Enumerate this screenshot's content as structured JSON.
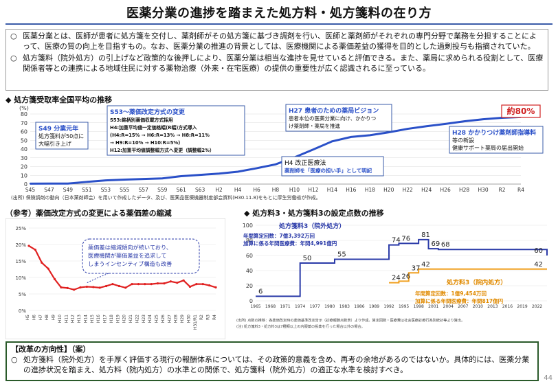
{
  "title": "医薬分業の進捗を踏まえた処方料・処方箋料の在り方",
  "intro": {
    "bullets": [
      "医薬分業とは、医師が患者に処方箋を交付し、薬剤師がその処方箋に基づき調剤を行い、医師と薬剤師がそれぞれの専門分野で業務を分担することによって、医療の質の向上を目指すもの。なお、医薬分業の推進の背景としては、医療機関による薬価差益の獲得を目的とした過剰投与も指摘されていた。",
      "処方箋料（院外処方）の引上げなど政策的な後押しにより、医薬分業は相当な進捗を見せていると評価できる。また、薬局に求められる役割として、医療関係者等との連携による地域住民に対する薬物治療（外来・在宅医療）の提供の重要性が広く認識されるに至っている。"
    ],
    "marker": "○"
  },
  "section1": {
    "heading": "◆ 処方箋受取率全国平均の推移",
    "source": "(出所) 保険調剤の動向（日本薬剤師会）を用いて作成したデータ、及び、医薬品医療機器制度部会資料(H30.11.8)をもとに厚生労働省が作成。",
    "badge": "約80%",
    "ann_s49_title": "S49 分業元年",
    "ann_s49_text": [
      "処方箋料が50点に",
      "大幅引き上げ"
    ],
    "ann_s53_title": "S53～薬価改定方式の変更",
    "ann_s53_lines": [
      "S53:銘柄別薬価収載方式採用",
      "H4:加重平均値一定価格幅(R幅)方式導入",
      "(H4:R=15% → H6:R=13% → H8:R=11%",
      "→ H9:R=10% → H10:R=5%)",
      "H12:加重平均値調整幅方式へ変更（調整幅2%）"
    ],
    "ann_h4_title": "H4 改正医療法",
    "ann_h4_text": "薬剤師を「医療の担い手」として明記",
    "ann_h27_title": "H27 患者のための薬局ビジョン",
    "ann_h27_text": [
      "患者本位の医薬分業に向け、かかりつ",
      "け薬剤師・薬局を推進"
    ],
    "ann_h28_title": "H28 かかりつけ薬剤師指導料",
    "ann_h28_text": [
      "等の新設",
      "健康サポート薬局の届出開始"
    ]
  },
  "section2": {
    "heading": "（参考）薬価改定方式の変更による薬価差の縮減",
    "note": [
      "薬価差は縮減傾向が続いており、",
      "医療機関が薬価差益を追求して",
      "しまうインセンティブ構造も改善"
    ]
  },
  "section3": {
    "heading": "◆ 処方料3・処方箋料3の設定点数の推移",
    "outpatient_label": "処方箋料3（院外処方）",
    "outpatient_stats": [
      "年間算定回数：7億3,392万回",
      "加算に係る年間医療費：年間4,991億円"
    ],
    "inpatient_label": "処方料3（院内処方）",
    "inpatient_stats": [
      "年間算定回数：1億9,454万回",
      "加算に係る年間医療費：年間817億円"
    ],
    "footnote": [
      "(出所) 点数の推移：各薬価改定時の薬価基準改定告示（診療報酬点数表）より作成。算定回数・医療費は社会医療診療行為別統計等より算出。",
      "(注) 処方箋料3・処方料3は7種類以上の内服薬の投薬を行った場合以外の場合。"
    ]
  },
  "reform": {
    "heading": "【改革の方向性】（案）",
    "marker": "○",
    "text": "処方箋料（院外処方）を手厚く評価する現行の報酬体系については、その政策的意義を含め、再考の余地があるのではないか。具体的には、医薬分業の進捗状況を踏まえ、処方料（院内処方）の水準との関係で、処方箋料（院外処方）の適正な水準を検討すべき。"
  },
  "page_number": "44",
  "chart_data": [
    {
      "type": "line",
      "title": "処方箋受取率全国平均の推移",
      "ylabel": "(%)",
      "ylim": [
        0,
        80
      ],
      "yticks": [
        0,
        10,
        20,
        30,
        40,
        50,
        60,
        70,
        80
      ],
      "xtick_labels": [
        "S45",
        "S47",
        "S49",
        "S51",
        "S53",
        "S55",
        "S57",
        "S59",
        "S61",
        "S63",
        "H2",
        "H4",
        "H6",
        "H8",
        "H10",
        "H12",
        "H14",
        "H16",
        "H18",
        "H20",
        "H22",
        "H24",
        "H26",
        "H28",
        "H30",
        "R2",
        "R4"
      ],
      "series": [
        {
          "x": [
            "S45",
            "S47",
            "S49",
            "S51",
            "S53",
            "S55",
            "S57",
            "S59",
            "S61",
            "S63",
            "H2",
            "H4",
            "H6",
            "H8",
            "H10",
            "H12",
            "H14",
            "H16",
            "H18",
            "H20",
            "H22",
            "H24",
            "H26",
            "H28",
            "H30",
            "R2",
            "R4"
          ],
          "values": [
            0.5,
            0.6,
            0.6,
            2.5,
            4.2,
            5.1,
            5.8,
            6.5,
            9.0,
            10.5,
            12.0,
            14.1,
            18.1,
            22.5,
            30.5,
            39.5,
            48.8,
            53.8,
            55.8,
            59.1,
            63.1,
            66.1,
            68.7,
            71.7,
            74.0,
            75.7,
            76.6
          ]
        }
      ],
      "grid": true
    },
    {
      "type": "line",
      "title": "",
      "ylim": [
        0,
        25
      ],
      "ytick_labels": [
        "0%",
        "5%",
        "10%",
        "15%",
        "20%",
        "25%"
      ],
      "categories": [
        "H5",
        "H6",
        "H7",
        "H8",
        "H9",
        "H10",
        "H11",
        "H12",
        "H13",
        "H14",
        "H15",
        "H16",
        "H17",
        "H18",
        "H19",
        "H20",
        "H21",
        "H22",
        "H23",
        "H24",
        "H25",
        "H26",
        "H27",
        "H28",
        "H29",
        "H30",
        "H31/R1",
        "R2",
        "R3",
        "R4"
      ],
      "series": [
        {
          "values": [
            19.6,
            18.4,
            14.5,
            12.7,
            9.5,
            7.0,
            6.8,
            6.3,
            7.0,
            7.2,
            7.1,
            6.9,
            7.4,
            8.0,
            7.4,
            6.9,
            8.0,
            8.0,
            8.0,
            8.0,
            8.2,
            8.2,
            8.8,
            8.4,
            9.1,
            7.2,
            8.0,
            8.0,
            7.6,
            7.0
          ]
        }
      ],
      "color": "#e02020",
      "grid": true
    },
    {
      "type": "line",
      "title": "",
      "ylim": [
        0,
        100
      ],
      "yticks": [
        0,
        20,
        40,
        60,
        80,
        100
      ],
      "xtick_labels": [
        "1965",
        "1968",
        "1971",
        "1974",
        "1977",
        "1980",
        "1983",
        "1986",
        "1989",
        "1992",
        "1995",
        "1998",
        "2001",
        "2004",
        "2007",
        "2010",
        "2013",
        "2016",
        "2019",
        "2022"
      ],
      "series": [
        {
          "name": "処方箋料3（院外処方）",
          "color": "#2a3aa8",
          "points": [
            [
              1965,
              6
            ],
            [
              1974,
              50
            ],
            [
              1981,
              55
            ],
            [
              1992,
              74
            ],
            [
              1994,
              76
            ],
            [
              1998,
              81
            ],
            [
              2000,
              69
            ],
            [
              2002,
              68
            ],
            [
              2024,
              60
            ]
          ],
          "labels": [
            6,
            50,
            55,
            74,
            76,
            81,
            69,
            68,
            60
          ]
        },
        {
          "name": "処方料3（院内処方）",
          "color": "#f0a020",
          "points": [
            [
              1992,
              24
            ],
            [
              1994,
              26
            ],
            [
              1996,
              37
            ],
            [
              1998,
              42
            ],
            [
              2024,
              42
            ]
          ],
          "labels": [
            24,
            26,
            37,
            42,
            42
          ]
        }
      ],
      "grid": true
    }
  ]
}
